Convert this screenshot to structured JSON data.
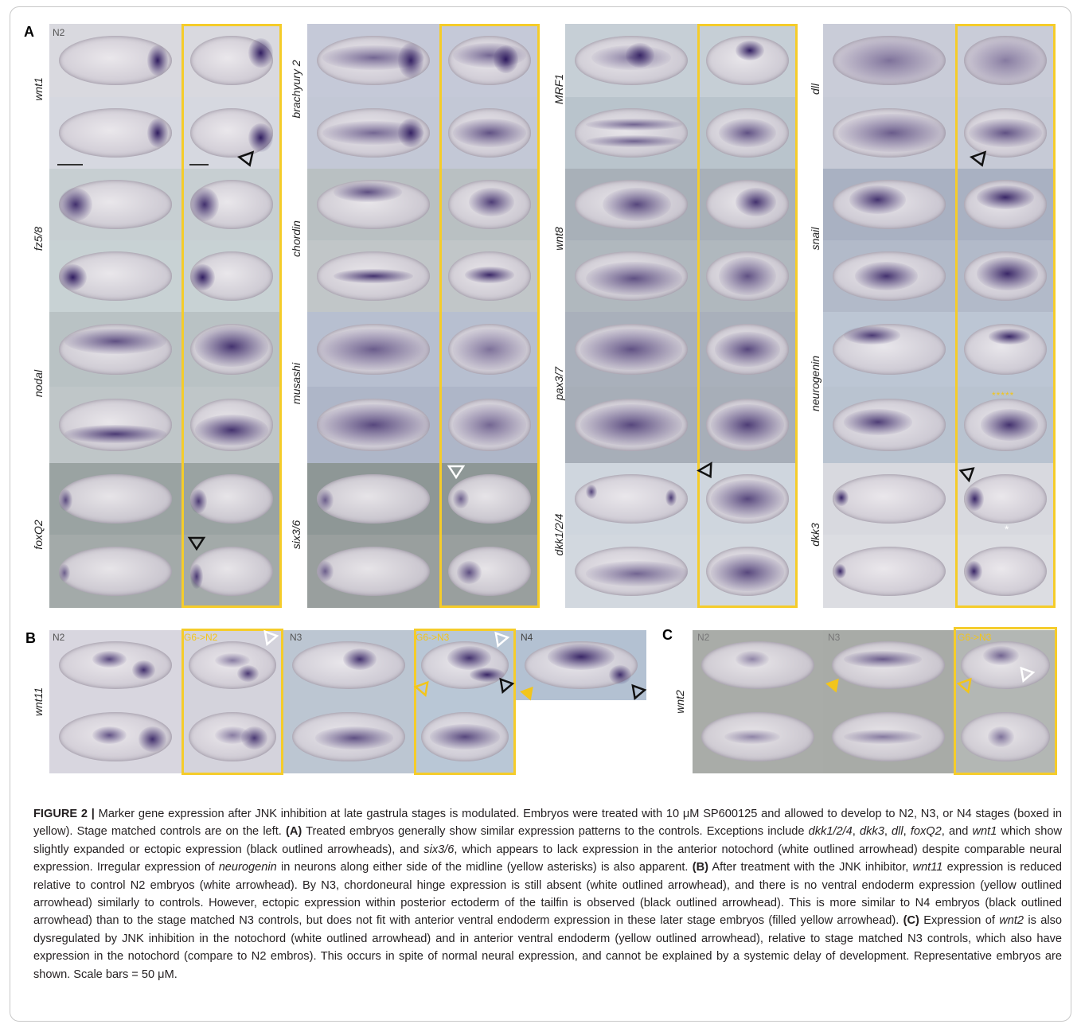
{
  "figure_label": "FIGURE 2 |",
  "panels": {
    "A": {
      "letter": "A"
    },
    "B": {
      "letter": "B"
    },
    "C": {
      "letter": "C"
    }
  },
  "genes_panel_A": {
    "col1": [
      "wnt1",
      "fz5/8",
      "nodal",
      "foxQ2"
    ],
    "col2": [
      "brachyury 2",
      "chordin",
      "musashi",
      "six3/6"
    ],
    "col3": [
      "MRF1",
      "wnt8",
      "pax3/7",
      "dkk1/2/4"
    ],
    "col4": [
      "dll",
      "snail",
      "neurogenin",
      "dkk3"
    ]
  },
  "panel_A_stage": "N2",
  "panel_B": {
    "gene": "wnt11",
    "stages": [
      "N2",
      "G6->N2",
      "N3",
      "G6->N3",
      "N4"
    ]
  },
  "panel_C": {
    "gene": "wnt2",
    "stages": [
      "N2",
      "N3",
      "G6->N3"
    ]
  },
  "asterisks_yellow": "*****",
  "asterisk_white": "*",
  "caption": {
    "title": "Marker gene expression after JNK inhibition at late gastrula stages is modulated.",
    "s1": " Embryos were treated with 10 μM SP600125 and allowed to develop to N2, N3, or N4 stages (boxed in yellow). Stage matched controls are on the left. ",
    "a_label": "(A)",
    "a_text_1": " Treated embryos generally show similar expression patterns to the controls. Exceptions include ",
    "a_genes": "dkk1/2/4",
    "a_sep1": ", ",
    "a_gene2": "dkk3",
    "a_sep2": ", ",
    "a_gene3": "dll",
    "a_sep3": ", ",
    "a_gene4": "foxQ2",
    "a_sep4": ", and ",
    "a_gene5": "wnt1",
    "a_text_2": " which show slightly expanded or ectopic expression (black outlined arrowheads), and ",
    "a_gene6": "six3/6",
    "a_text_3": ", which appears to lack expression in the anterior notochord (white outlined arrowhead) despite comparable neural expression. Irregular expression of ",
    "a_gene7": "neurogenin",
    "a_text_4": " in neurons along either side of the midline (yellow asterisks) is also apparent. ",
    "b_label": "(B)",
    "b_text_1": " After treatment with the JNK inhibitor, ",
    "b_gene": "wnt11",
    "b_text_2": " expression is reduced relative to control N2 embryos (white arrowhead). By N3, chordoneural hinge expression is still absent (white outlined arrowhead), and there is no ventral endoderm expression (yellow outlined arrowhead) similarly to controls. However, ectopic expression within posterior ectoderm of the tailfin is observed (black outlined arrowhead). This is more similar to N4 embryos (black outlined arrowhead) than to the stage matched N3 controls, but does not fit with anterior ventral endoderm expression in these later stage embryos (filled yellow arrowhead). ",
    "c_label": "(C)",
    "c_text_1": " Expression of ",
    "c_gene": "wnt2",
    "c_text_2": " is also dysregulated by JNK inhibition in the notochord (white outlined arrowhead) and in anterior ventral endoderm (yellow outlined arrowhead), relative to stage matched N3 controls, which also have expression in the notochord (compare to N2 embros). This occurs in spite of normal neural expression, and cannot be explained by a systemic delay of development. Representative embryos are shown. Scale bars = 50 μM."
  }
}
